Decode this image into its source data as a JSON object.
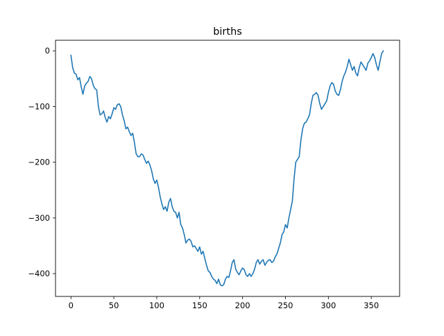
{
  "chart_data": {
    "type": "line",
    "title": "births",
    "xlabel": "",
    "ylabel": "",
    "xlim": [
      -18,
      383
    ],
    "ylim": [
      -441,
      19
    ],
    "xticks": [
      0,
      50,
      100,
      150,
      200,
      250,
      300,
      350
    ],
    "yticks": [
      0,
      -100,
      -200,
      -300,
      -400
    ],
    "xtick_labels": [
      "0",
      "50",
      "100",
      "150",
      "200",
      "250",
      "300",
      "350"
    ],
    "ytick_labels": [
      "0",
      "−100",
      "−200",
      "−300",
      "−400"
    ],
    "grid": false,
    "series": [
      {
        "color": "#1f77b4",
        "points": [
          [
            0,
            -8
          ],
          [
            2,
            -30
          ],
          [
            4,
            -40
          ],
          [
            6,
            -42
          ],
          [
            8,
            -52
          ],
          [
            10,
            -48
          ],
          [
            12,
            -65
          ],
          [
            14,
            -78
          ],
          [
            16,
            -63
          ],
          [
            18,
            -58
          ],
          [
            20,
            -55
          ],
          [
            22,
            -46
          ],
          [
            24,
            -50
          ],
          [
            26,
            -62
          ],
          [
            28,
            -68
          ],
          [
            30,
            -70
          ],
          [
            32,
            -100
          ],
          [
            34,
            -115
          ],
          [
            36,
            -113
          ],
          [
            38,
            -108
          ],
          [
            40,
            -120
          ],
          [
            42,
            -128
          ],
          [
            44,
            -118
          ],
          [
            46,
            -122
          ],
          [
            48,
            -113
          ],
          [
            50,
            -102
          ],
          [
            52,
            -105
          ],
          [
            54,
            -97
          ],
          [
            56,
            -95
          ],
          [
            58,
            -100
          ],
          [
            60,
            -115
          ],
          [
            62,
            -125
          ],
          [
            64,
            -140
          ],
          [
            66,
            -137
          ],
          [
            68,
            -145
          ],
          [
            70,
            -152
          ],
          [
            72,
            -148
          ],
          [
            74,
            -165
          ],
          [
            76,
            -185
          ],
          [
            78,
            -190
          ],
          [
            80,
            -190
          ],
          [
            82,
            -185
          ],
          [
            84,
            -187
          ],
          [
            86,
            -195
          ],
          [
            88,
            -202
          ],
          [
            90,
            -198
          ],
          [
            92,
            -205
          ],
          [
            94,
            -215
          ],
          [
            96,
            -230
          ],
          [
            98,
            -238
          ],
          [
            100,
            -232
          ],
          [
            102,
            -245
          ],
          [
            104,
            -262
          ],
          [
            106,
            -275
          ],
          [
            108,
            -285
          ],
          [
            110,
            -280
          ],
          [
            112,
            -288
          ],
          [
            114,
            -272
          ],
          [
            116,
            -265
          ],
          [
            118,
            -280
          ],
          [
            120,
            -288
          ],
          [
            122,
            -290
          ],
          [
            124,
            -300
          ],
          [
            126,
            -290
          ],
          [
            128,
            -312
          ],
          [
            130,
            -318
          ],
          [
            132,
            -330
          ],
          [
            134,
            -345
          ],
          [
            136,
            -340
          ],
          [
            138,
            -338
          ],
          [
            140,
            -342
          ],
          [
            142,
            -352
          ],
          [
            144,
            -350
          ],
          [
            146,
            -355
          ],
          [
            148,
            -360
          ],
          [
            150,
            -352
          ],
          [
            152,
            -365
          ],
          [
            154,
            -360
          ],
          [
            156,
            -373
          ],
          [
            158,
            -385
          ],
          [
            160,
            -395
          ],
          [
            162,
            -398
          ],
          [
            164,
            -405
          ],
          [
            166,
            -410
          ],
          [
            168,
            -412
          ],
          [
            170,
            -418
          ],
          [
            172,
            -410
          ],
          [
            174,
            -420
          ],
          [
            176,
            -422
          ],
          [
            178,
            -420
          ],
          [
            180,
            -410
          ],
          [
            182,
            -405
          ],
          [
            184,
            -407
          ],
          [
            186,
            -395
          ],
          [
            188,
            -380
          ],
          [
            190,
            -375
          ],
          [
            192,
            -392
          ],
          [
            194,
            -398
          ],
          [
            196,
            -402
          ],
          [
            198,
            -395
          ],
          [
            200,
            -390
          ],
          [
            202,
            -393
          ],
          [
            204,
            -402
          ],
          [
            206,
            -405
          ],
          [
            208,
            -400
          ],
          [
            210,
            -405
          ],
          [
            212,
            -400
          ],
          [
            214,
            -392
          ],
          [
            216,
            -380
          ],
          [
            218,
            -375
          ],
          [
            220,
            -383
          ],
          [
            222,
            -378
          ],
          [
            224,
            -375
          ],
          [
            226,
            -385
          ],
          [
            228,
            -380
          ],
          [
            230,
            -376
          ],
          [
            232,
            -375
          ],
          [
            234,
            -380
          ],
          [
            236,
            -378
          ],
          [
            238,
            -370
          ],
          [
            240,
            -365
          ],
          [
            242,
            -355
          ],
          [
            244,
            -345
          ],
          [
            246,
            -330
          ],
          [
            248,
            -325
          ],
          [
            250,
            -312
          ],
          [
            252,
            -318
          ],
          [
            254,
            -300
          ],
          [
            256,
            -285
          ],
          [
            258,
            -270
          ],
          [
            260,
            -230
          ],
          [
            262,
            -200
          ],
          [
            264,
            -195
          ],
          [
            266,
            -190
          ],
          [
            268,
            -160
          ],
          [
            270,
            -140
          ],
          [
            272,
            -130
          ],
          [
            274,
            -128
          ],
          [
            276,
            -122
          ],
          [
            278,
            -115
          ],
          [
            280,
            -95
          ],
          [
            282,
            -80
          ],
          [
            284,
            -78
          ],
          [
            286,
            -75
          ],
          [
            288,
            -80
          ],
          [
            290,
            -95
          ],
          [
            292,
            -105
          ],
          [
            294,
            -100
          ],
          [
            296,
            -95
          ],
          [
            298,
            -90
          ],
          [
            300,
            -75
          ],
          [
            302,
            -63
          ],
          [
            304,
            -57
          ],
          [
            306,
            -60
          ],
          [
            308,
            -72
          ],
          [
            310,
            -78
          ],
          [
            312,
            -80
          ],
          [
            314,
            -70
          ],
          [
            316,
            -55
          ],
          [
            318,
            -45
          ],
          [
            320,
            -38
          ],
          [
            322,
            -28
          ],
          [
            324,
            -15
          ],
          [
            326,
            -25
          ],
          [
            328,
            -35
          ],
          [
            330,
            -28
          ],
          [
            332,
            -40
          ],
          [
            334,
            -45
          ],
          [
            336,
            -30
          ],
          [
            338,
            -20
          ],
          [
            340,
            -25
          ],
          [
            342,
            -30
          ],
          [
            344,
            -35
          ],
          [
            346,
            -22
          ],
          [
            348,
            -18
          ],
          [
            350,
            -12
          ],
          [
            352,
            -5
          ],
          [
            354,
            -12
          ],
          [
            356,
            -25
          ],
          [
            358,
            -35
          ],
          [
            360,
            -20
          ],
          [
            362,
            -5
          ],
          [
            364,
            0
          ]
        ]
      }
    ]
  }
}
